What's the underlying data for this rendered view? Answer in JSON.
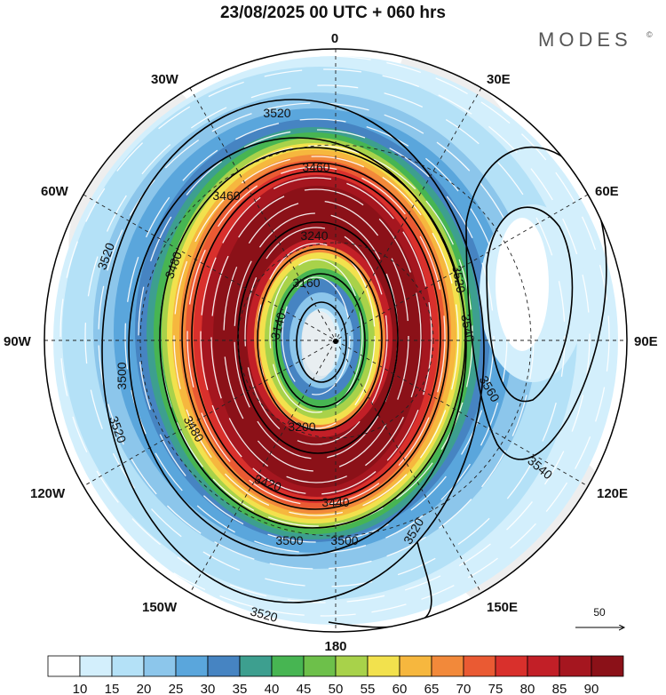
{
  "header": {
    "title": "23/08/2025  00 UTC  + 060 hrs",
    "brand": "MODES",
    "brand_mark": "©"
  },
  "meridian_labels": {
    "top": "0",
    "bottom": "180",
    "left": "90W",
    "right": "90E",
    "upper_left": "30W",
    "upper_right": "30E",
    "mid_left_top": "60W",
    "mid_right_top": "60E",
    "mid_left_bottom": "120W",
    "mid_right_bottom": "120E",
    "lower_left": "150W",
    "lower_right": "150E"
  },
  "contour_labels": [
    "3520",
    "3460",
    "3460",
    "3480",
    "3520",
    "3240",
    "3160",
    "3140",
    "3520",
    "3540",
    "3500",
    "3480",
    "3520",
    "3560",
    "3540",
    "3520",
    "3500",
    "3500",
    "3420",
    "3440",
    "3200",
    "3520"
  ],
  "reference_vector": {
    "label": "50"
  },
  "colorbar": {
    "colors": [
      "#ffffff",
      "#d3effc",
      "#b4e1f7",
      "#8cc6eb",
      "#5aa6dc",
      "#4684c2",
      "#3d9f8f",
      "#47b552",
      "#6dc04a",
      "#a8d24a",
      "#f2e14d",
      "#f6b73e",
      "#f2893a",
      "#ea5a33",
      "#d9302c",
      "#c21f27",
      "#a5161f",
      "#8b1118"
    ],
    "ticks": [
      "10",
      "15",
      "20",
      "25",
      "30",
      "35",
      "40",
      "45",
      "50",
      "55",
      "60",
      "65",
      "70",
      "75",
      "80",
      "85",
      "90"
    ]
  },
  "palette": {
    "land": "#eeeeee",
    "coast": "#9a9a9a",
    "contour": "#000000"
  }
}
